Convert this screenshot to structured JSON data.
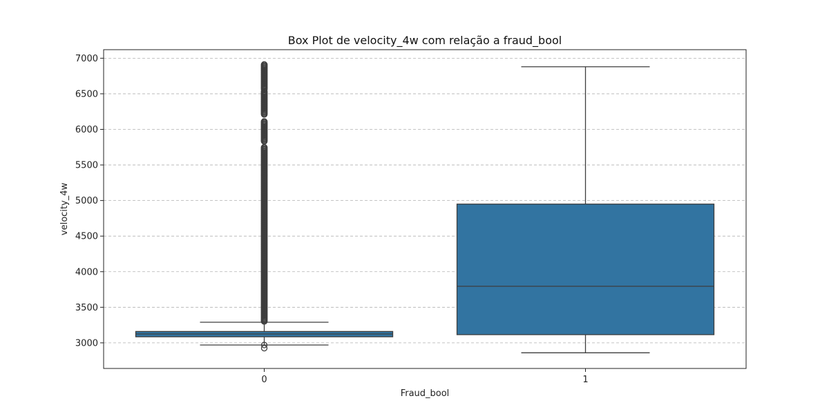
{
  "chart_data": {
    "type": "box",
    "title": "Box Plot de velocity_4w com relação a fraud_bool",
    "xlabel": "Fraud_bool",
    "ylabel": "velocity_4w",
    "categories": [
      "0",
      "1"
    ],
    "ylim": [
      2640,
      7120
    ],
    "yticks": [
      3000,
      3500,
      4000,
      4500,
      5000,
      5500,
      6000,
      6500,
      7000
    ],
    "grid": {
      "y": true,
      "style": "dashed"
    },
    "box_color": "#3274a1",
    "line_color": "#3d3d3d",
    "boxes": [
      {
        "category": "0",
        "whisker_low": 2970,
        "q1": 3085,
        "median": 3125,
        "q3": 3160,
        "whisker_high": 3290,
        "outliers_low": [
          2925,
          2970
        ],
        "outlier_band_high": [
          3290,
          6910
        ]
      },
      {
        "category": "1",
        "whisker_low": 2860,
        "q1": 3115,
        "median": 3795,
        "q3": 4950,
        "whisker_high": 6880,
        "outliers_low": [],
        "outlier_band_high": null
      }
    ]
  }
}
